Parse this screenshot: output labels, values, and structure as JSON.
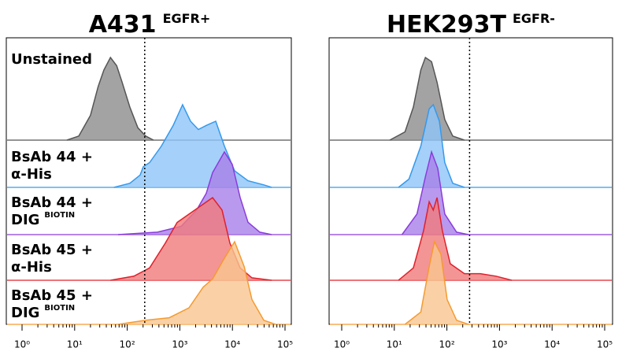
{
  "chart_data": [
    {
      "type": "ridgeline",
      "title": "A431",
      "title_superscript": "EGFR+",
      "xscale": "log",
      "xlim": [
        1,
        100000
      ],
      "xticks": [
        {
          "value": 1,
          "label": "10⁰"
        },
        {
          "value": 10,
          "label": "10¹"
        },
        {
          "value": 100,
          "label": "10²"
        },
        {
          "value": 1000,
          "label": "10³"
        },
        {
          "value": 10000,
          "label": "10⁴"
        },
        {
          "value": 100000,
          "label": "10⁵"
        }
      ],
      "ylim": [
        0,
        100
      ],
      "gate": 215,
      "series": [
        {
          "name": [
            "Unstained"
          ],
          "color": "#555555",
          "fill": "#8c8c8c",
          "x": [
            7.1,
            12,
            20,
            28,
            36,
            48,
            63,
            80,
            112,
            159,
            224,
            316
          ],
          "values": [
            0,
            5,
            30,
            65,
            85,
            100,
            90,
            70,
            40,
            15,
            5,
            0
          ]
        },
        {
          "name": [
            "BsAb 44 +",
            "α-His"
          ],
          "color": "#3399ee",
          "fill": "#8fc4f7",
          "x": [
            56,
            112,
            176,
            202,
            266,
            447,
            748,
            1130,
            1600,
            2250,
            3180,
            4820,
            7040,
            11000,
            19800,
            39400,
            55700
          ],
          "values": [
            0,
            5,
            15,
            25,
            30,
            50,
            75,
            100,
            80,
            70,
            75,
            80,
            50,
            20,
            8,
            3,
            0
          ]
        },
        {
          "name": [
            "BsAb 44 +",
            "DIG"
          ],
          "name_superscript": "BIOTIN",
          "color": "#8a3cdc",
          "fill": "#a87fe8",
          "x": [
            67,
            376,
            1060,
            2100,
            3180,
            4200,
            7040,
            9930,
            14000,
            19800,
            33200,
            55700
          ],
          "values": [
            0,
            3,
            10,
            30,
            50,
            75,
            100,
            85,
            45,
            15,
            3,
            0
          ]
        },
        {
          "name": [
            "BsAb 45 +",
            "α-His"
          ],
          "color": "#e0202a",
          "fill": "#f07a7a",
          "x": [
            48,
            134,
            266,
            531,
            889,
            1490,
            2500,
            4200,
            6340,
            8960,
            14000,
            23500,
            55700
          ],
          "values": [
            0,
            5,
            15,
            45,
            70,
            80,
            90,
            100,
            85,
            45,
            15,
            3,
            0
          ]
        },
        {
          "name": [
            "BsAb 45 +",
            "DIG"
          ],
          "name_superscript": "BIOTIN",
          "color": "#f59a30",
          "fill": "#f9c590",
          "x": [
            67,
            224,
            631,
            1490,
            2770,
            4200,
            7040,
            11000,
            16700,
            23500,
            39400,
            66000
          ],
          "values": [
            0,
            5,
            8,
            20,
            45,
            55,
            80,
            100,
            70,
            30,
            5,
            0
          ]
        }
      ]
    },
    {
      "type": "ridgeline",
      "title": "HEK293T",
      "title_superscript": "EGFR-",
      "xscale": "log",
      "xlim": [
        1,
        100000
      ],
      "xticks": [
        {
          "value": 1,
          "label": "10⁰"
        },
        {
          "value": 10,
          "label": "10¹"
        },
        {
          "value": 100,
          "label": "10²"
        },
        {
          "value": 1000,
          "label": "10³"
        },
        {
          "value": 10000,
          "label": "10⁴"
        },
        {
          "value": 100000,
          "label": "10⁵"
        }
      ],
      "ylim": [
        0,
        100
      ],
      "gate": 270,
      "series": [
        {
          "color": "#555555",
          "fill": "#8c8c8c",
          "x": [
            8.2,
            16,
            23,
            32,
            39,
            51,
            65,
            91,
            129,
            216
          ],
          "values": [
            0,
            10,
            40,
            85,
            100,
            95,
            70,
            25,
            5,
            0
          ]
        },
        {
          "color": "#3399ee",
          "fill": "#8fc4f7",
          "x": [
            12,
            19,
            32,
            46,
            55,
            72,
            91,
            129,
            216
          ],
          "values": [
            0,
            10,
            50,
            95,
            100,
            80,
            30,
            5,
            0
          ]
        },
        {
          "color": "#8a3cdc",
          "fill": "#a87fe8",
          "x": [
            14,
            27,
            39,
            51,
            67,
            91,
            153,
            257
          ],
          "values": [
            0,
            25,
            70,
            100,
            80,
            25,
            3,
            0
          ]
        },
        {
          "color": "#e0202a",
          "fill": "#f07a7a",
          "x": [
            12,
            23,
            36,
            46,
            55,
            65,
            82,
            116,
            216,
            431,
            860,
            1710
          ],
          "values": [
            0,
            15,
            60,
            95,
            85,
            100,
            60,
            20,
            8,
            8,
            5,
            0
          ]
        },
        {
          "color": "#f59a30",
          "fill": "#f9c590",
          "x": [
            16,
            32,
            46,
            58,
            77,
            101,
            153,
            257
          ],
          "values": [
            0,
            15,
            70,
            100,
            85,
            30,
            5,
            0
          ]
        }
      ]
    }
  ]
}
